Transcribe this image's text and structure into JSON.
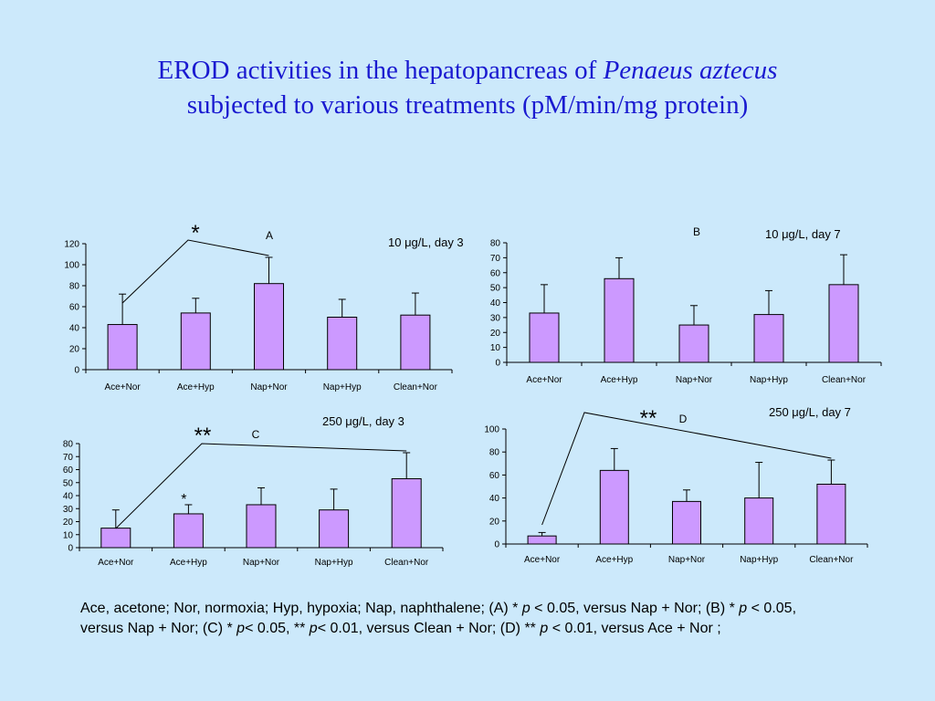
{
  "title": {
    "line1_prefix": "EROD activities in the hepatopancreas of ",
    "line1_species": "Penaeus aztecus",
    "line2": "subjected to various treatments (pM/min/mg protein)"
  },
  "colors": {
    "background": "#cce9fb",
    "title": "#1a1ad0",
    "bar_fill": "#cc99ff",
    "bar_stroke": "#000000"
  },
  "chart_data": [
    {
      "type": "bar",
      "panel": "A",
      "condition": "10 μg/L, day 3",
      "categories": [
        "Ace+Nor",
        "Ace+Hyp",
        "Nap+Nor",
        "Nap+Hyp",
        "Clean+Nor"
      ],
      "values": [
        43,
        54,
        82,
        50,
        52
      ],
      "error_upper": [
        72,
        68,
        107,
        67,
        73
      ],
      "ylim": [
        0,
        120
      ],
      "yticks": [
        0,
        20,
        40,
        60,
        80,
        100,
        120
      ],
      "significance": {
        "mark": "*",
        "from_category": 0,
        "to_category": 2
      }
    },
    {
      "type": "bar",
      "panel": "B",
      "condition": "10 μg/L, day 7",
      "categories": [
        "Ace+Nor",
        "Ace+Hyp",
        "Nap+Nor",
        "Nap+Hyp",
        "Clean+Nor"
      ],
      "values": [
        33,
        56,
        25,
        32,
        52
      ],
      "error_upper": [
        52,
        70,
        38,
        48,
        72
      ],
      "ylim": [
        0,
        80
      ],
      "yticks": [
        0,
        10,
        20,
        30,
        40,
        50,
        60,
        70,
        80
      ]
    },
    {
      "type": "bar",
      "panel": "C",
      "condition": "250 μg/L, day 3",
      "categories": [
        "Ace+Nor",
        "Ace+Hyp",
        "Nap+Nor",
        "Nap+Hyp",
        "Clean+Nor"
      ],
      "values": [
        15,
        26,
        33,
        29,
        53
      ],
      "error_upper": [
        29,
        33,
        46,
        45,
        73
      ],
      "ylim": [
        0,
        80
      ],
      "yticks": [
        0,
        10,
        20,
        30,
        40,
        50,
        60,
        70,
        80
      ],
      "significance": {
        "mark": "**",
        "from_category": 0,
        "to_category": 4
      },
      "bar_marks": [
        {
          "category": 1,
          "mark": "*"
        }
      ]
    },
    {
      "type": "bar",
      "panel": "D",
      "condition": "250 μg/L, day 7",
      "categories": [
        "Ace+Nor",
        "Ace+Hyp",
        "Nap+Nor",
        "Nap+Hyp",
        "Clean+Nor"
      ],
      "values": [
        7,
        64,
        37,
        40,
        52
      ],
      "error_upper": [
        10,
        83,
        47,
        71,
        73
      ],
      "ylim": [
        0,
        100
      ],
      "yticks": [
        0,
        20,
        40,
        60,
        80,
        100
      ],
      "significance": {
        "mark": "**",
        "from_category": 0,
        "to_category": 4
      }
    }
  ],
  "footnote": {
    "part1": "Ace, acetone; Nor, normoxia; Hyp, hypoxia; Nap, naphthalene; (A) * ",
    "p1": "p",
    "part2": " < 0.05, versus Nap + Nor; (B) * ",
    "p2": "p",
    "part3": " < 0.05, versus Nap + Nor; (C) * ",
    "p3": "p",
    "part4": "< 0.05, ** ",
    "p4": "p",
    "part5": "< 0.01, versus Clean + Nor; (D) ** ",
    "p5": "p",
    "part6": " < 0.01, versus Ace + Nor ;"
  }
}
